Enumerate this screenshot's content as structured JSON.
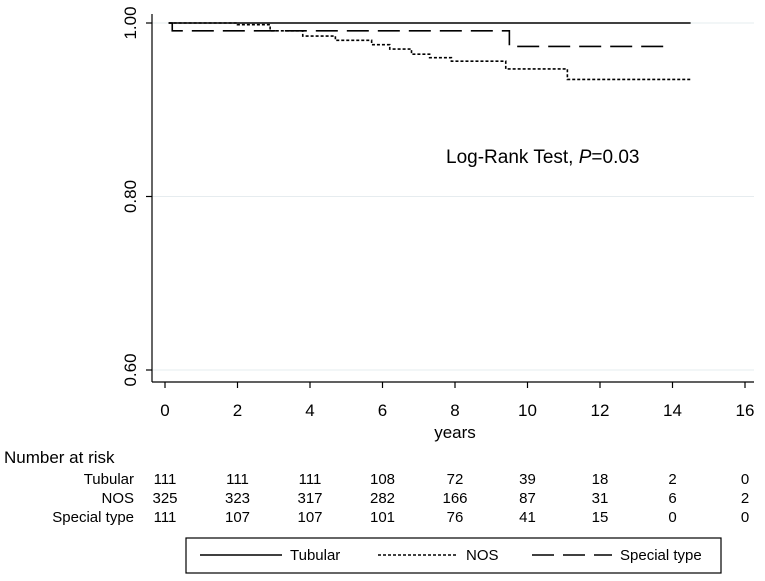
{
  "chart_data": {
    "type": "line",
    "title": "",
    "xlabel": "years",
    "ylabel": "",
    "xlim": [
      0,
      16
    ],
    "ylim": [
      0.6,
      1.0
    ],
    "x_ticks": [
      "0",
      "2",
      "4",
      "6",
      "8",
      "10",
      "12",
      "14",
      "16"
    ],
    "y_ticks": [
      "0.60",
      "0.80",
      "1.00"
    ],
    "annotation": {
      "prefix": "Log-Rank Test, ",
      "italic": "P",
      "suffix": "=0.03"
    },
    "series": [
      {
        "name": "Tubular",
        "dash": "solid",
        "x": [
          0.1,
          14.5
        ],
        "y": [
          1.0,
          1.0
        ]
      },
      {
        "name": "NOS",
        "dash": "dotted",
        "x": [
          0.1,
          2.0,
          2.9,
          3.8,
          4.7,
          5.7,
          6.2,
          6.8,
          7.3,
          7.9,
          9.4,
          11.1,
          14.5
        ],
        "y": [
          1.0,
          0.998,
          0.991,
          0.985,
          0.98,
          0.975,
          0.97,
          0.964,
          0.96,
          0.956,
          0.947,
          0.935,
          0.935
        ]
      },
      {
        "name": "Special type",
        "dash": "longdash",
        "x": [
          0.1,
          0.2,
          9.5,
          13.9
        ],
        "y": [
          1.0,
          0.991,
          0.973,
          0.973
        ]
      }
    ],
    "number_at_risk": {
      "title": "Number at risk",
      "rows": [
        {
          "label": "Tubular",
          "values": [
            "111",
            "111",
            "111",
            "108",
            "72",
            "39",
            "18",
            "2",
            "0"
          ]
        },
        {
          "label": "NOS",
          "values": [
            "325",
            "323",
            "317",
            "282",
            "166",
            "87",
            "31",
            "6",
            "2"
          ]
        },
        {
          "label": "Special type",
          "values": [
            "111",
            "107",
            "107",
            "101",
            "76",
            "41",
            "15",
            "0",
            "0"
          ]
        }
      ]
    },
    "legend": {
      "position": "bottom",
      "entries": [
        "Tubular",
        "NOS",
        "Special type"
      ]
    }
  }
}
